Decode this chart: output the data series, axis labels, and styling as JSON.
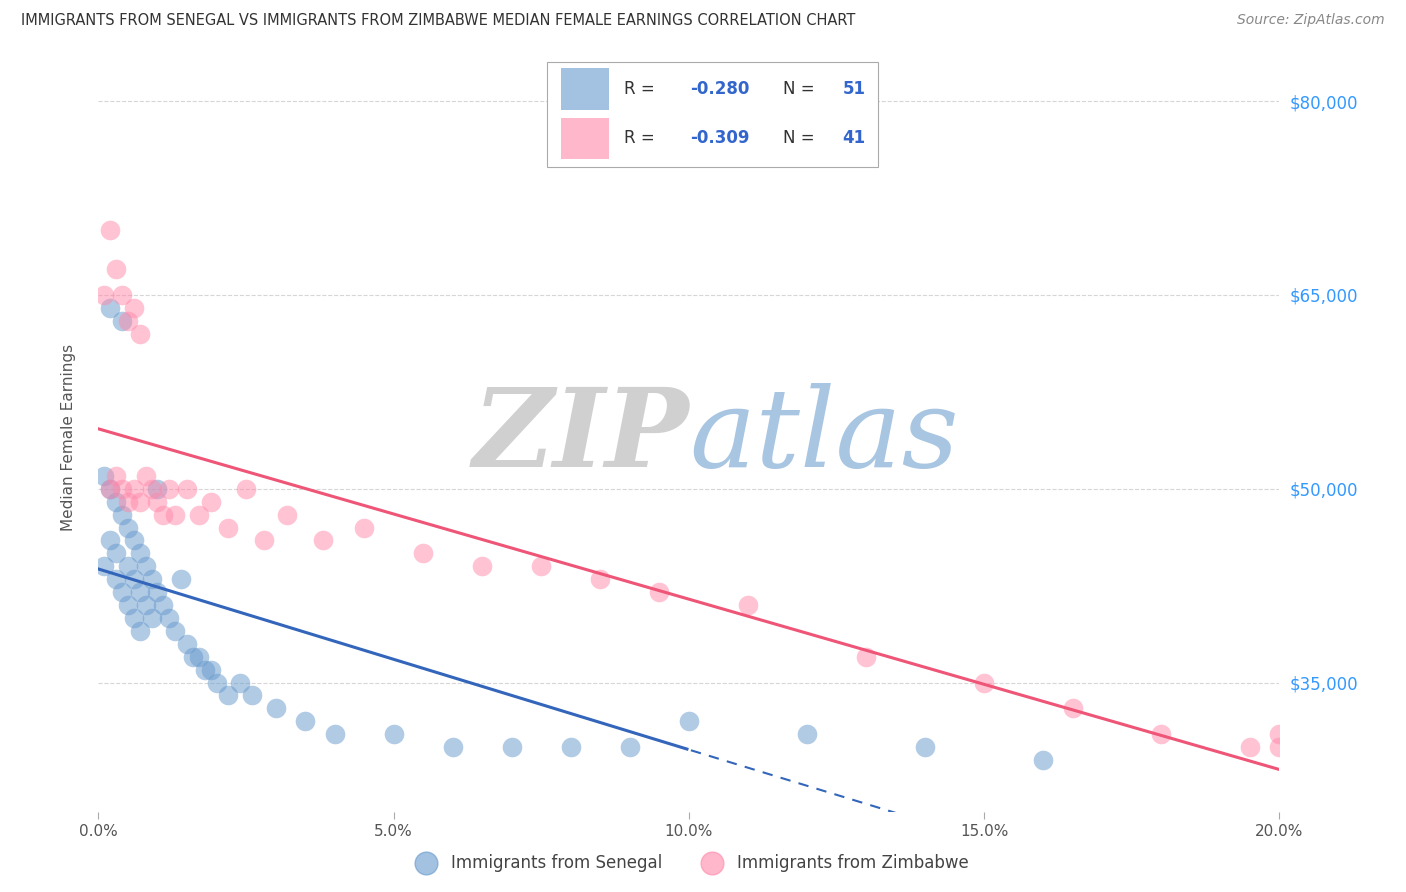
{
  "title": "IMMIGRANTS FROM SENEGAL VS IMMIGRANTS FROM ZIMBABWE MEDIAN FEMALE EARNINGS CORRELATION CHART",
  "source": "Source: ZipAtlas.com",
  "ylabel": "Median Female Earnings",
  "xlim": [
    0.0,
    0.2
  ],
  "ylim": [
    25000,
    83000
  ],
  "senegal_color": "#6699cc",
  "zimbabwe_color": "#ff88aa",
  "senegal_label": "Immigrants from Senegal",
  "zimbabwe_label": "Immigrants from Zimbabwe",
  "senegal_R": "-0.280",
  "senegal_N": "51",
  "zimbabwe_R": "-0.309",
  "zimbabwe_N": "41",
  "legend_text_color": "#3366cc",
  "legend_label_color": "#333333",
  "ytick_color": "#3399ff",
  "grid_color": "#cccccc",
  "senegal_x": [
    0.001,
    0.001,
    0.002,
    0.002,
    0.002,
    0.003,
    0.003,
    0.003,
    0.004,
    0.004,
    0.004,
    0.005,
    0.005,
    0.005,
    0.006,
    0.006,
    0.006,
    0.007,
    0.007,
    0.007,
    0.008,
    0.008,
    0.009,
    0.009,
    0.01,
    0.01,
    0.011,
    0.012,
    0.013,
    0.014,
    0.015,
    0.016,
    0.017,
    0.018,
    0.019,
    0.02,
    0.022,
    0.024,
    0.026,
    0.03,
    0.035,
    0.04,
    0.05,
    0.06,
    0.07,
    0.08,
    0.09,
    0.1,
    0.12,
    0.14,
    0.16
  ],
  "senegal_y": [
    51000,
    44000,
    64000,
    50000,
    46000,
    49000,
    45000,
    43000,
    63000,
    48000,
    42000,
    47000,
    44000,
    41000,
    46000,
    43000,
    40000,
    45000,
    42000,
    39000,
    44000,
    41000,
    43000,
    40000,
    50000,
    42000,
    41000,
    40000,
    39000,
    43000,
    38000,
    37000,
    37000,
    36000,
    36000,
    35000,
    34000,
    35000,
    34000,
    33000,
    32000,
    31000,
    31000,
    30000,
    30000,
    30000,
    30000,
    32000,
    31000,
    30000,
    29000
  ],
  "zimbabwe_x": [
    0.001,
    0.002,
    0.002,
    0.003,
    0.003,
    0.004,
    0.004,
    0.005,
    0.005,
    0.006,
    0.006,
    0.007,
    0.007,
    0.008,
    0.009,
    0.01,
    0.011,
    0.012,
    0.013,
    0.015,
    0.017,
    0.019,
    0.022,
    0.025,
    0.028,
    0.032,
    0.038,
    0.045,
    0.055,
    0.065,
    0.075,
    0.085,
    0.095,
    0.11,
    0.13,
    0.15,
    0.165,
    0.18,
    0.195,
    0.2,
    0.2
  ],
  "zimbabwe_y": [
    65000,
    70000,
    50000,
    67000,
    51000,
    65000,
    50000,
    63000,
    49000,
    64000,
    50000,
    62000,
    49000,
    51000,
    50000,
    49000,
    48000,
    50000,
    48000,
    50000,
    48000,
    49000,
    47000,
    50000,
    46000,
    48000,
    46000,
    47000,
    45000,
    44000,
    44000,
    43000,
    42000,
    41000,
    37000,
    35000,
    33000,
    31000,
    30000,
    31000,
    30000
  ]
}
